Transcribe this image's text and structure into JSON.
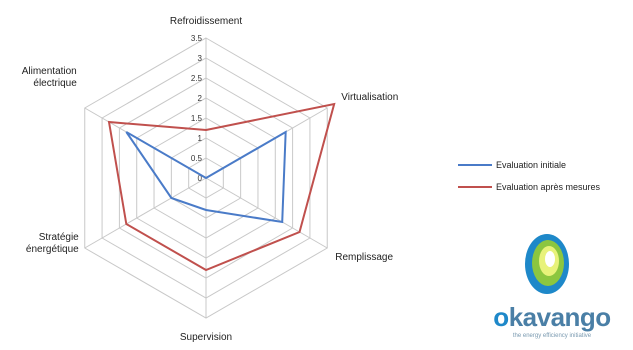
{
  "chart_data": {
    "type": "radar",
    "axes": [
      "Refroidissement",
      "Virtualisation",
      "Remplissage",
      "Supervision",
      "Stratégie énergétique",
      "Alimentation électrique"
    ],
    "rlim": [
      0,
      3.5
    ],
    "ticks": [
      "0",
      "0.5",
      "1",
      "1.5",
      "2",
      "2.5",
      "3",
      "3.5"
    ],
    "series": [
      {
        "name": "Evaluation initiale",
        "color": "#4a7bc8",
        "values": [
          0,
          2.3,
          2.2,
          0.8,
          1.0,
          2.3
        ]
      },
      {
        "name": "Evaluation après mesures",
        "color": "#c0504d",
        "values": [
          1.2,
          3.7,
          2.7,
          2.3,
          2.3,
          2.8
        ]
      }
    ],
    "grid": true,
    "legend": "right"
  },
  "logo": {
    "text_o": "o",
    "text_rest": "kavango",
    "tagline": "the energy efficiency initiative"
  }
}
